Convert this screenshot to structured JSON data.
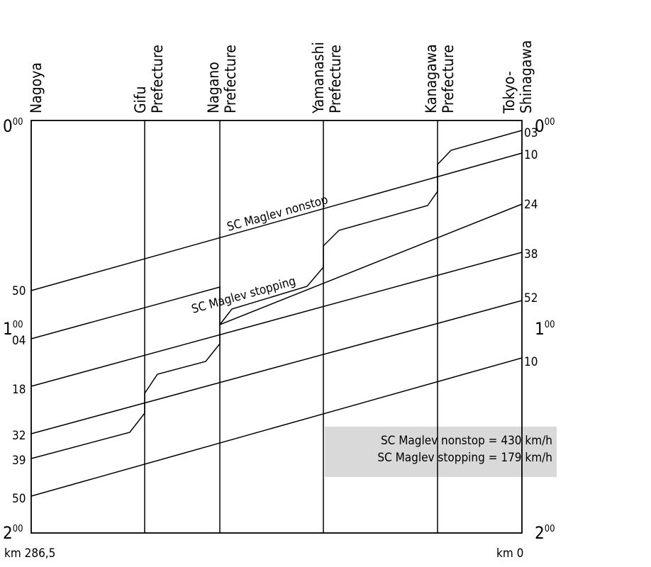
{
  "stations": [
    {
      "lines": [
        "Nagoya"
      ]
    },
    {
      "lines": [
        "Gifu",
        "Prefecture"
      ]
    },
    {
      "lines": [
        "Nagano",
        "Prefecture"
      ]
    },
    {
      "lines": [
        "Yamanashi",
        "Prefecture"
      ]
    },
    {
      "lines": [
        "Kanagawa",
        "Prefecture"
      ]
    },
    {
      "lines": [
        "Tokyo-",
        "Shinagawa"
      ]
    }
  ],
  "hour_labels": [
    {
      "hour": "0",
      "mins": "00"
    },
    {
      "hour": "1",
      "mins": "00"
    },
    {
      "hour": "2",
      "mins": "00"
    }
  ],
  "left_minutes": [
    "50",
    "04",
    "18",
    "32",
    "39",
    "50"
  ],
  "right_minutes": [
    "03",
    "10",
    "24",
    "38",
    "52",
    "10"
  ],
  "line_labels": {
    "nonstop": "SC Maglev nonstop",
    "stopping": "SC Maglev stopping"
  },
  "legend": {
    "line1": "SC Maglev nonstop = 430 km/h",
    "line2": "SC Maglev stopping = 179 km/h",
    "bg_color": "#d9d9d9"
  },
  "km_left": "km 286,5",
  "km_right": "km 0"
}
